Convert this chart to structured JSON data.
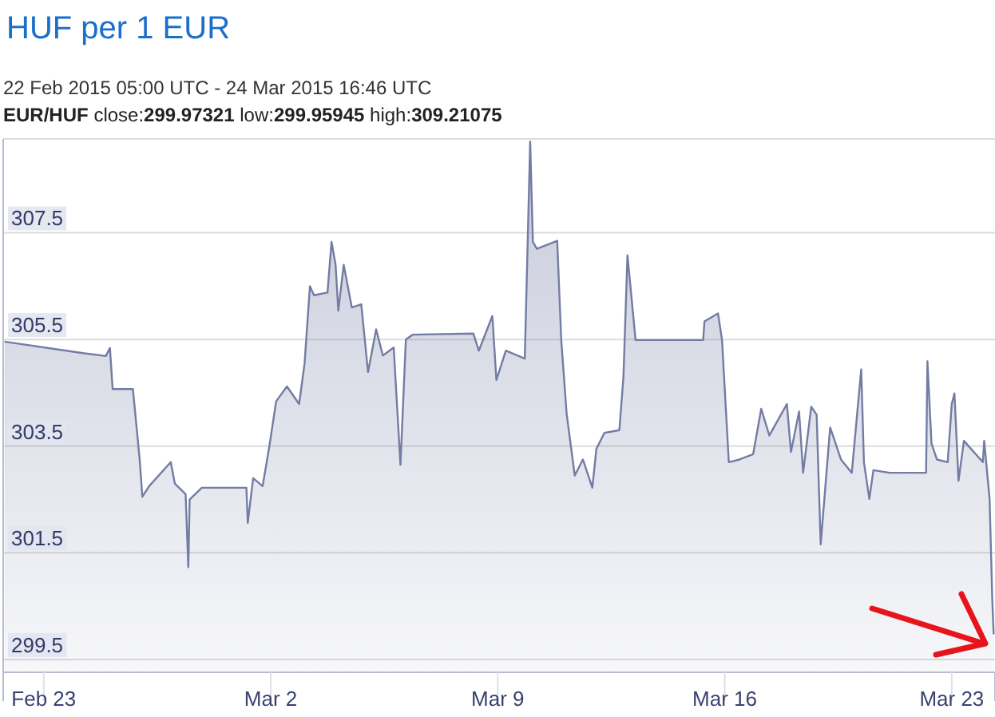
{
  "chart_data": {
    "type": "area",
    "title": "HUF per 1 EUR",
    "subtitle": "22 Feb 2015 05:00 UTC - 24 Mar 2015 16:46 UTC",
    "annotations": [
      "EUR/HUF close:299.97321 low:299.95945 high:309.21075"
    ],
    "xlim": [
      "2015-02-21T18:00",
      "2015-03-24T08:00"
    ],
    "xticks": [
      {
        "value": "2015-02-23",
        "label": "Feb 23"
      },
      {
        "value": "2015-03-02",
        "label": "Mar 2"
      },
      {
        "value": "2015-03-09",
        "label": "Mar 9"
      },
      {
        "value": "2015-03-16",
        "label": "Mar 16"
      },
      {
        "value": "2015-03-23",
        "label": "Mar 23"
      }
    ],
    "ylim": [
      299.26,
      309.26
    ],
    "yticks": [
      299.5,
      301.5,
      303.5,
      305.5,
      307.5
    ],
    "grid": "y",
    "series": [
      {
        "color": "#737ca3",
        "x": [
          "2015-02-21T19:00",
          "2015-02-24T06:00",
          "2015-02-24T22:00",
          "2015-02-25T01:00",
          "2015-02-25T03:00",
          "2015-02-25T18:00",
          "2015-02-25T23:00",
          "2015-02-26T01:00",
          "2015-02-26T06:00",
          "2015-02-26T22:00",
          "2015-02-27T01:00",
          "2015-02-27T09:00",
          "2015-02-27T11:00",
          "2015-02-27T12:00",
          "2015-02-27T21:00",
          "2015-03-01T06:00",
          "2015-03-01T07:00",
          "2015-03-01T11:00",
          "2015-03-01T18:00",
          "2015-03-01T23:00",
          "2015-03-02T04:00",
          "2015-03-02T12:00",
          "2015-03-02T21:00",
          "2015-03-03T01:00",
          "2015-03-03T05:00",
          "2015-03-03T08:00",
          "2015-03-03T18:00",
          "2015-03-03T21:00",
          "2015-03-04T00:00",
          "2015-03-04T02:00",
          "2015-03-04T06:00",
          "2015-03-04T12:00",
          "2015-03-04T19:00",
          "2015-03-05T00:00",
          "2015-03-05T06:00",
          "2015-03-05T11:00",
          "2015-03-05T19:00",
          "2015-03-06T00:00",
          "2015-03-06T04:00",
          "2015-03-06T09:00",
          "2015-03-08T06:00",
          "2015-03-08T10:00",
          "2015-03-08T20:00",
          "2015-03-08T23:00",
          "2015-03-09T06:00",
          "2015-03-09T20:00",
          "2015-03-10T00:00",
          "2015-03-10T02:00",
          "2015-03-10T05:00",
          "2015-03-10T20:00",
          "2015-03-10T23:00",
          "2015-03-11T03:00",
          "2015-03-11T09:00",
          "2015-03-11T15:00",
          "2015-03-11T22:00",
          "2015-03-12T01:00",
          "2015-03-12T07:00",
          "2015-03-12T18:00",
          "2015-03-12T21:00",
          "2015-03-13T00:00",
          "2015-03-13T06:00",
          "2015-03-15T08:00",
          "2015-03-15T09:00",
          "2015-03-15T19:00",
          "2015-03-15T22:00",
          "2015-03-16T03:00",
          "2015-03-16T11:00",
          "2015-03-16T21:00",
          "2015-03-17T03:00",
          "2015-03-17T09:00",
          "2015-03-17T22:00",
          "2015-03-18T01:00",
          "2015-03-18T07:00",
          "2015-03-18T10:00",
          "2015-03-18T16:00",
          "2015-03-18T20:00",
          "2015-03-18T23:00",
          "2015-03-19T06:00",
          "2015-03-19T14:00",
          "2015-03-19T22:00",
          "2015-03-20T05:00",
          "2015-03-20T07:00",
          "2015-03-20T11:00",
          "2015-03-20T14:00",
          "2015-03-21T02:00",
          "2015-03-22T05:00",
          "2015-03-22T06:00",
          "2015-03-22T09:00",
          "2015-03-22T13:00",
          "2015-03-22T21:00",
          "2015-03-23T00:00",
          "2015-03-23T02:00",
          "2015-03-23T05:00",
          "2015-03-23T09:00",
          "2015-03-23T23:00",
          "2015-03-24T00:00",
          "2015-03-24T04:00",
          "2015-03-24T06:00",
          "2015-03-24T07:00"
        ],
        "values": [
          305.46,
          305.24,
          305.19,
          305.34,
          304.57,
          304.57,
          303.25,
          302.55,
          302.75,
          303.2,
          302.8,
          302.6,
          301.23,
          302.5,
          302.72,
          302.72,
          302.06,
          302.9,
          302.75,
          303.5,
          304.34,
          304.62,
          304.29,
          305.04,
          306.5,
          306.33,
          306.38,
          307.33,
          306.9,
          306.04,
          306.9,
          306.1,
          306.16,
          304.89,
          305.69,
          305.2,
          305.35,
          303.15,
          305.5,
          305.59,
          305.61,
          305.29,
          305.94,
          304.74,
          305.29,
          305.14,
          309.21,
          307.33,
          307.2,
          307.35,
          305.49,
          304.1,
          302.95,
          303.25,
          302.72,
          303.45,
          303.75,
          303.8,
          304.79,
          307.08,
          305.49,
          305.49,
          305.84,
          305.99,
          305.49,
          303.2,
          303.25,
          303.35,
          304.2,
          303.7,
          304.29,
          303.39,
          304.15,
          303.0,
          304.24,
          304.09,
          301.66,
          303.85,
          303.25,
          303.0,
          304.94,
          303.2,
          302.51,
          303.05,
          303.0,
          303.0,
          305.09,
          303.55,
          303.25,
          303.2,
          304.29,
          304.49,
          302.85,
          303.6,
          303.2,
          303.6,
          302.51,
          300.61,
          299.97
        ]
      }
    ]
  }
}
